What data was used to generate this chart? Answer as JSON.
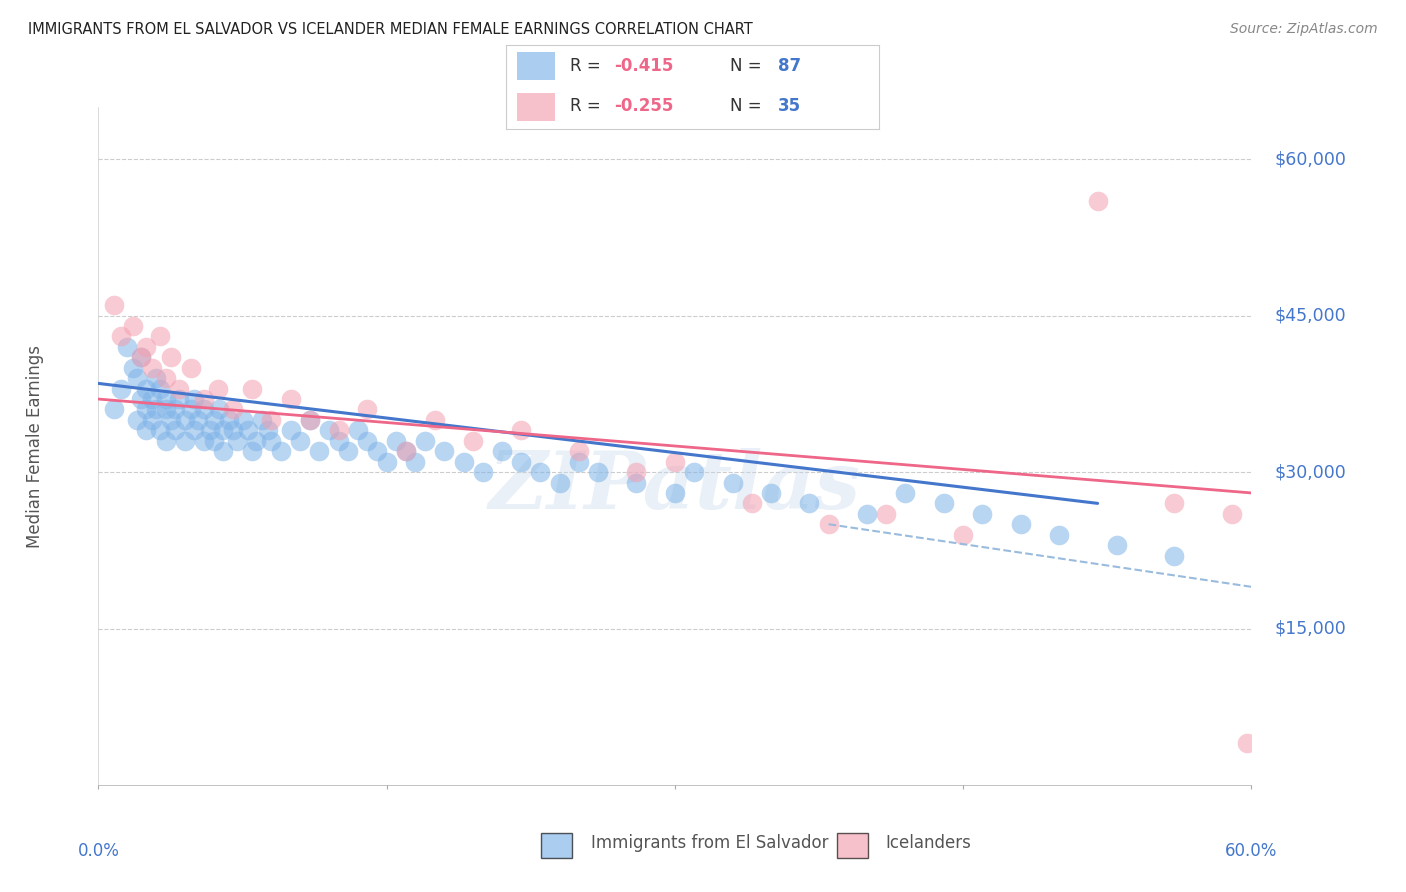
{
  "title": "IMMIGRANTS FROM EL SALVADOR VS ICELANDER MEDIAN FEMALE EARNINGS CORRELATION CHART",
  "source": "Source: ZipAtlas.com",
  "ylabel": "Median Female Earnings",
  "ytick_labels": [
    "$15,000",
    "$30,000",
    "$45,000",
    "$60,000"
  ],
  "ytick_values": [
    15000,
    30000,
    45000,
    60000
  ],
  "ymin": 0,
  "ymax": 65000,
  "xmin": 0.0,
  "xmax": 0.6,
  "legend_blue_r": "-0.415",
  "legend_blue_n": "87",
  "legend_pink_r": "-0.255",
  "legend_pink_n": "35",
  "legend_label_blue": "Immigrants from El Salvador",
  "legend_label_pink": "Icelanders",
  "blue_color": "#7EB3E8",
  "pink_color": "#F4A0B0",
  "blue_line_color": "#4477CC",
  "pink_line_color": "#EE6688",
  "dashed_line_color": "#99BBDD",
  "title_color": "#222222",
  "axis_color": "#4477CC",
  "background_color": "#FFFFFF",
  "blue_scatter_x": [
    0.008,
    0.012,
    0.015,
    0.018,
    0.02,
    0.02,
    0.022,
    0.022,
    0.025,
    0.025,
    0.025,
    0.028,
    0.028,
    0.03,
    0.03,
    0.032,
    0.032,
    0.035,
    0.035,
    0.035,
    0.038,
    0.04,
    0.04,
    0.042,
    0.045,
    0.045,
    0.048,
    0.05,
    0.05,
    0.052,
    0.055,
    0.055,
    0.058,
    0.06,
    0.06,
    0.063,
    0.065,
    0.065,
    0.068,
    0.07,
    0.072,
    0.075,
    0.078,
    0.08,
    0.082,
    0.085,
    0.088,
    0.09,
    0.095,
    0.1,
    0.105,
    0.11,
    0.115,
    0.12,
    0.125,
    0.13,
    0.135,
    0.14,
    0.145,
    0.15,
    0.155,
    0.16,
    0.165,
    0.17,
    0.18,
    0.19,
    0.2,
    0.21,
    0.22,
    0.23,
    0.24,
    0.25,
    0.26,
    0.28,
    0.3,
    0.31,
    0.33,
    0.35,
    0.37,
    0.4,
    0.42,
    0.44,
    0.46,
    0.48,
    0.5,
    0.53,
    0.56
  ],
  "blue_scatter_y": [
    36000,
    38000,
    42000,
    40000,
    35000,
    39000,
    37000,
    41000,
    36000,
    38000,
    34000,
    37000,
    35000,
    36000,
    39000,
    34000,
    38000,
    36000,
    33000,
    37000,
    35000,
    36000,
    34000,
    37000,
    35000,
    33000,
    36000,
    34000,
    37000,
    35000,
    33000,
    36000,
    34000,
    35000,
    33000,
    36000,
    34000,
    32000,
    35000,
    34000,
    33000,
    35000,
    34000,
    32000,
    33000,
    35000,
    34000,
    33000,
    32000,
    34000,
    33000,
    35000,
    32000,
    34000,
    33000,
    32000,
    34000,
    33000,
    32000,
    31000,
    33000,
    32000,
    31000,
    33000,
    32000,
    31000,
    30000,
    32000,
    31000,
    30000,
    29000,
    31000,
    30000,
    29000,
    28000,
    30000,
    29000,
    28000,
    27000,
    26000,
    28000,
    27000,
    26000,
    25000,
    24000,
    23000,
    22000
  ],
  "pink_scatter_x": [
    0.008,
    0.012,
    0.018,
    0.022,
    0.025,
    0.028,
    0.032,
    0.035,
    0.038,
    0.042,
    0.048,
    0.055,
    0.062,
    0.07,
    0.08,
    0.09,
    0.1,
    0.11,
    0.125,
    0.14,
    0.16,
    0.175,
    0.195,
    0.22,
    0.25,
    0.28,
    0.3,
    0.34,
    0.38,
    0.41,
    0.45,
    0.52,
    0.56,
    0.59,
    0.598
  ],
  "pink_scatter_y": [
    46000,
    43000,
    44000,
    41000,
    42000,
    40000,
    43000,
    39000,
    41000,
    38000,
    40000,
    37000,
    38000,
    36000,
    38000,
    35000,
    37000,
    35000,
    34000,
    36000,
    32000,
    35000,
    33000,
    34000,
    32000,
    30000,
    31000,
    27000,
    25000,
    26000,
    24000,
    56000,
    27000,
    26000,
    4000
  ],
  "blue_line_x": [
    0.0,
    0.52
  ],
  "blue_line_y": [
    38500,
    27000
  ],
  "pink_line_x": [
    0.0,
    0.6
  ],
  "pink_line_y": [
    37000,
    28000
  ],
  "dashed_line_x": [
    0.38,
    0.6
  ],
  "dashed_line_y": [
    25000,
    19000
  ]
}
